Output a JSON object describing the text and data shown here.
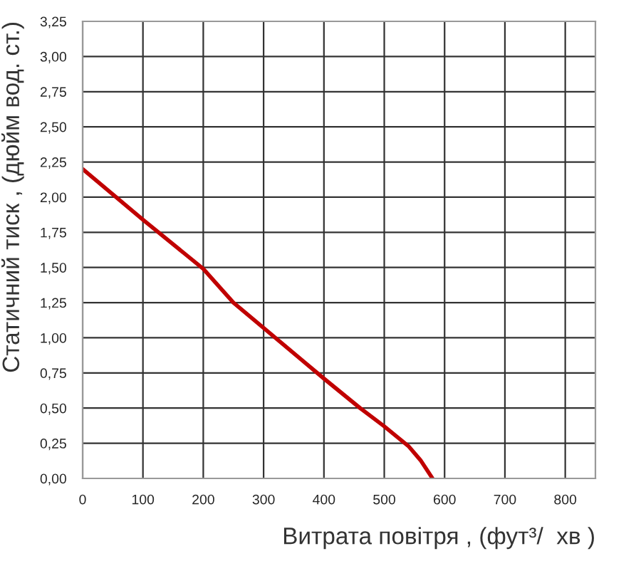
{
  "chart_data": {
    "type": "line",
    "xlabel": "Витрата повітря , (фут³/  хв )",
    "ylabel": "Статичний тиск , (дюйм вод. ст.)",
    "x": [
      0,
      100,
      200,
      250,
      300,
      400,
      460,
      500,
      540,
      560,
      580
    ],
    "series": [
      {
        "color": "#c00000",
        "values": [
          2.2,
          1.84,
          1.49,
          1.25,
          1.07,
          0.71,
          0.5,
          0.37,
          0.23,
          0.13,
          0
        ]
      }
    ],
    "xlim": [
      0,
      850
    ],
    "xticks": [
      0,
      100,
      200,
      300,
      400,
      500,
      600,
      700,
      800
    ],
    "ylim": [
      0,
      3.25
    ],
    "yticks": [
      {
        "value": 0,
        "label": "0,00"
      },
      {
        "value": 0.25,
        "label": "0,25"
      },
      {
        "value": 0.5,
        "label": "0,50"
      },
      {
        "value": 0.75,
        "label": "0,75"
      },
      {
        "value": 1,
        "label": "1,00"
      },
      {
        "value": 1.25,
        "label": "1,25"
      },
      {
        "value": 1.5,
        "label": "1,50"
      },
      {
        "value": 1.75,
        "label": "1,75"
      },
      {
        "value": 2,
        "label": "2,00"
      },
      {
        "value": 2.25,
        "label": "2,25"
      },
      {
        "value": 2.5,
        "label": "2,50"
      },
      {
        "value": 2.75,
        "label": "2,75"
      },
      {
        "value": 3,
        "label": "3,00"
      },
      {
        "value": 3.25,
        "label": "3,25"
      }
    ],
    "grid": true,
    "legend": false
  }
}
